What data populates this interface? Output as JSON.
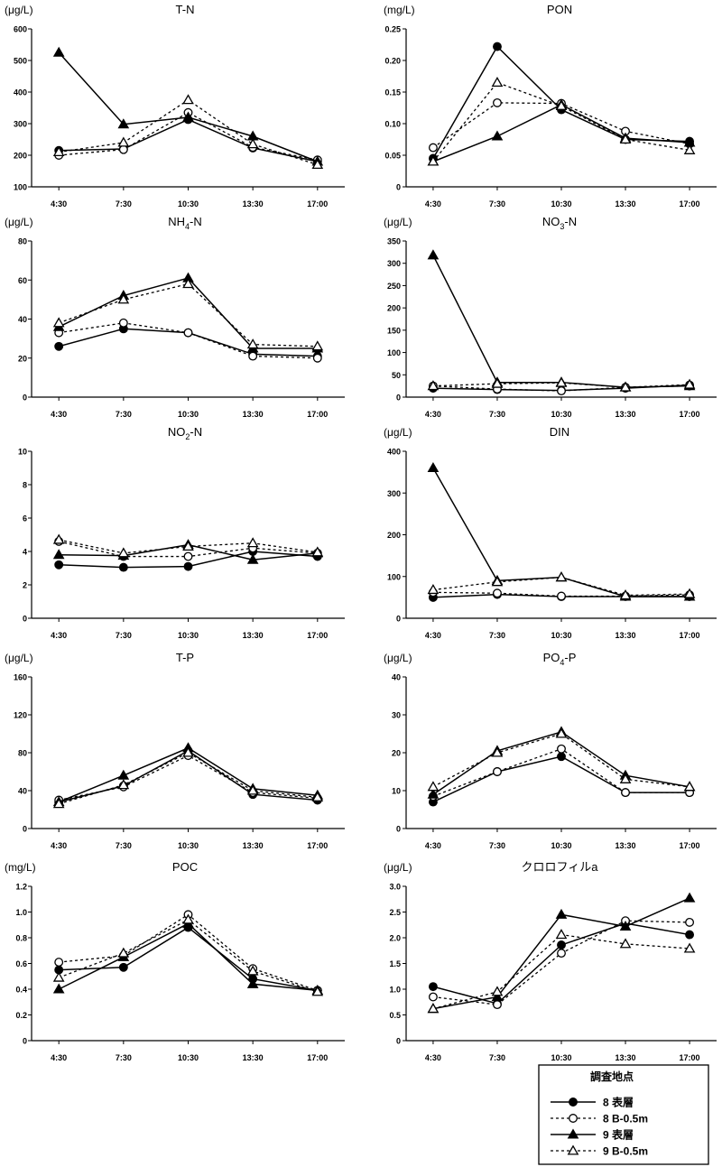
{
  "x_categories": [
    "4:30",
    "7:30",
    "10:30",
    "13:30",
    "17:00"
  ],
  "legend": {
    "title": "調査地点",
    "entries": [
      {
        "label": "8 表層",
        "marker": "filled-circle",
        "line": "solid"
      },
      {
        "label": "8 B-0.5m",
        "marker": "open-circle",
        "line": "dotted"
      },
      {
        "label": "9 表層",
        "marker": "filled-triangle",
        "line": "solid"
      },
      {
        "label": "9 B-0.5m",
        "marker": "open-triangle",
        "line": "dotted"
      }
    ]
  },
  "chart_data": [
    {
      "type": "line",
      "title": "T-N",
      "unit": "(μg/L)",
      "ylim": [
        100,
        600
      ],
      "yticks": [
        "100",
        "200",
        "300",
        "400",
        "500",
        "600"
      ],
      "series": [
        {
          "name": "8 表層",
          "values": [
            215,
            220,
            313,
            223,
            180
          ]
        },
        {
          "name": "8 B-0.5m",
          "values": [
            200,
            218,
            335,
            225,
            185
          ]
        },
        {
          "name": "9 表層",
          "values": [
            525,
            298,
            320,
            260,
            180
          ]
        },
        {
          "name": "9 B-0.5m",
          "values": [
            210,
            240,
            375,
            235,
            170
          ]
        }
      ]
    },
    {
      "type": "line",
      "title": "PON",
      "unit": "(mg/L)",
      "ylim": [
        0,
        0.25
      ],
      "yticks": [
        "0",
        "0.05",
        "0.10",
        "0.15",
        "0.20",
        "0.25"
      ],
      "series": [
        {
          "name": "8 表層",
          "values": [
            0.045,
            0.222,
            0.122,
            0.075,
            0.072
          ]
        },
        {
          "name": "8 B-0.5m",
          "values": [
            0.062,
            0.133,
            0.132,
            0.088,
            0.068
          ]
        },
        {
          "name": "9 表層",
          "values": [
            0.04,
            0.08,
            0.13,
            0.077,
            0.07
          ]
        },
        {
          "name": "9 B-0.5m",
          "values": [
            0.04,
            0.165,
            0.128,
            0.075,
            0.058
          ]
        }
      ]
    },
    {
      "type": "line",
      "title": "NH",
      "title_sub": "4",
      "title_suffix": "-N",
      "unit": "(μg/L)",
      "ylim": [
        0,
        80
      ],
      "yticks": [
        "0",
        "20",
        "40",
        "60",
        "80"
      ],
      "series": [
        {
          "name": "8 表層",
          "values": [
            26,
            35,
            33,
            22,
            21
          ]
        },
        {
          "name": "8 B-0.5m",
          "values": [
            33,
            38,
            33,
            21,
            20
          ]
        },
        {
          "name": "9 表層",
          "values": [
            36,
            52,
            61,
            25,
            25
          ]
        },
        {
          "name": "9 B-0.5m",
          "values": [
            38,
            50,
            58,
            27,
            26
          ]
        }
      ]
    },
    {
      "type": "line",
      "title": "NO",
      "title_sub": "3",
      "title_suffix": "-N",
      "unit": "(μg/L)",
      "ylim": [
        0,
        350
      ],
      "yticks": [
        "0",
        "50",
        "100",
        "150",
        "200",
        "250",
        "300",
        "350"
      ],
      "series": [
        {
          "name": "8 表層",
          "values": [
            20,
            17,
            15,
            20,
            27
          ]
        },
        {
          "name": "8 B-0.5m",
          "values": [
            25,
            18,
            14,
            22,
            25
          ]
        },
        {
          "name": "9 表層",
          "values": [
            318,
            33,
            33,
            22,
            25
          ]
        },
        {
          "name": "9 B-0.5m",
          "values": [
            25,
            30,
            32,
            22,
            28
          ]
        }
      ]
    },
    {
      "type": "line",
      "title": "NO",
      "title_sub": "2",
      "title_suffix": "-N",
      "unit": "",
      "ylim": [
        0,
        10
      ],
      "yticks": [
        "0",
        "2",
        "4",
        "6",
        "8",
        "10"
      ],
      "series": [
        {
          "name": "8 表層",
          "values": [
            3.2,
            3.05,
            3.1,
            4.0,
            3.7
          ]
        },
        {
          "name": "8 B-0.5m",
          "values": [
            4.6,
            3.7,
            3.7,
            4.2,
            3.9
          ]
        },
        {
          "name": "9 表層",
          "values": [
            3.8,
            3.75,
            4.4,
            3.5,
            3.9
          ]
        },
        {
          "name": "9 B-0.5m",
          "values": [
            4.7,
            3.9,
            4.3,
            4.5,
            3.95
          ]
        }
      ]
    },
    {
      "type": "line",
      "title": "DIN",
      "unit": "(μg/L)",
      "ylim": [
        0,
        400
      ],
      "yticks": [
        "0",
        "100",
        "200",
        "300",
        "400"
      ],
      "series": [
        {
          "name": "8 表層",
          "values": [
            50,
            57,
            52,
            52,
            52
          ]
        },
        {
          "name": "8 B-0.5m",
          "values": [
            62,
            60,
            53,
            53,
            56
          ]
        },
        {
          "name": "9 表層",
          "values": [
            360,
            90,
            98,
            52,
            52
          ]
        },
        {
          "name": "9 B-0.5m",
          "values": [
            68,
            87,
            98,
            55,
            58
          ]
        }
      ]
    },
    {
      "type": "line",
      "title": "T-P",
      "unit": "(μg/L)",
      "ylim": [
        0,
        160
      ],
      "yticks": [
        "0",
        "40",
        "80",
        "120",
        "160"
      ],
      "series": [
        {
          "name": "8 表層",
          "values": [
            28,
            45,
            82,
            36,
            30
          ]
        },
        {
          "name": "8 B-0.5m",
          "values": [
            30,
            44,
            77,
            38,
            32
          ]
        },
        {
          "name": "9 表層",
          "values": [
            28,
            56,
            85,
            42,
            35
          ]
        },
        {
          "name": "9 B-0.5m",
          "values": [
            26,
            46,
            80,
            40,
            33
          ]
        }
      ]
    },
    {
      "type": "line",
      "title": "PO",
      "title_sub": "4",
      "title_suffix": "-P",
      "unit": "(μg/L)",
      "ylim": [
        0,
        40
      ],
      "yticks": [
        "0",
        "10",
        "20",
        "30",
        "40"
      ],
      "series": [
        {
          "name": "8 表層",
          "values": [
            7,
            15,
            19,
            9.5,
            9.5
          ]
        },
        {
          "name": "8 B-0.5m",
          "values": [
            8.5,
            15,
            21,
            9.5,
            9.5
          ]
        },
        {
          "name": "9 表層",
          "values": [
            9,
            20.5,
            25.5,
            14,
            11
          ]
        },
        {
          "name": "9 B-0.5m",
          "values": [
            11,
            20,
            25,
            13,
            11
          ]
        }
      ]
    },
    {
      "type": "line",
      "title": "POC",
      "unit": "(mg/L)",
      "ylim": [
        0,
        1.2
      ],
      "yticks": [
        "0",
        "0.2",
        "0.4",
        "0.6",
        "0.8",
        "1.0",
        "1.2"
      ],
      "series": [
        {
          "name": "8 表層",
          "values": [
            0.55,
            0.57,
            0.88,
            0.48,
            0.39
          ]
        },
        {
          "name": "8 B-0.5m",
          "values": [
            0.61,
            0.66,
            0.98,
            0.56,
            0.39
          ]
        },
        {
          "name": "9 表層",
          "values": [
            0.4,
            0.65,
            0.91,
            0.44,
            0.39
          ]
        },
        {
          "name": "9 B-0.5m",
          "values": [
            0.49,
            0.68,
            0.94,
            0.54,
            0.38
          ]
        }
      ]
    },
    {
      "type": "line",
      "title": "クロロフィルa",
      "unit": "(μg/L)",
      "ylim": [
        0,
        3.0
      ],
      "yticks": [
        "0",
        "0.5",
        "1.0",
        "1.5",
        "2.0",
        "2.5",
        "3.0"
      ],
      "series": [
        {
          "name": "8 表層",
          "values": [
            1.05,
            0.72,
            1.86,
            2.28,
            2.06
          ]
        },
        {
          "name": "8 B-0.5m",
          "values": [
            0.85,
            0.7,
            1.7,
            2.33,
            2.3
          ]
        },
        {
          "name": "9 表層",
          "values": [
            0.62,
            0.85,
            2.45,
            2.22,
            2.77
          ]
        },
        {
          "name": "9 B-0.5m",
          "values": [
            0.62,
            0.95,
            2.06,
            1.88,
            1.79
          ]
        }
      ]
    }
  ]
}
